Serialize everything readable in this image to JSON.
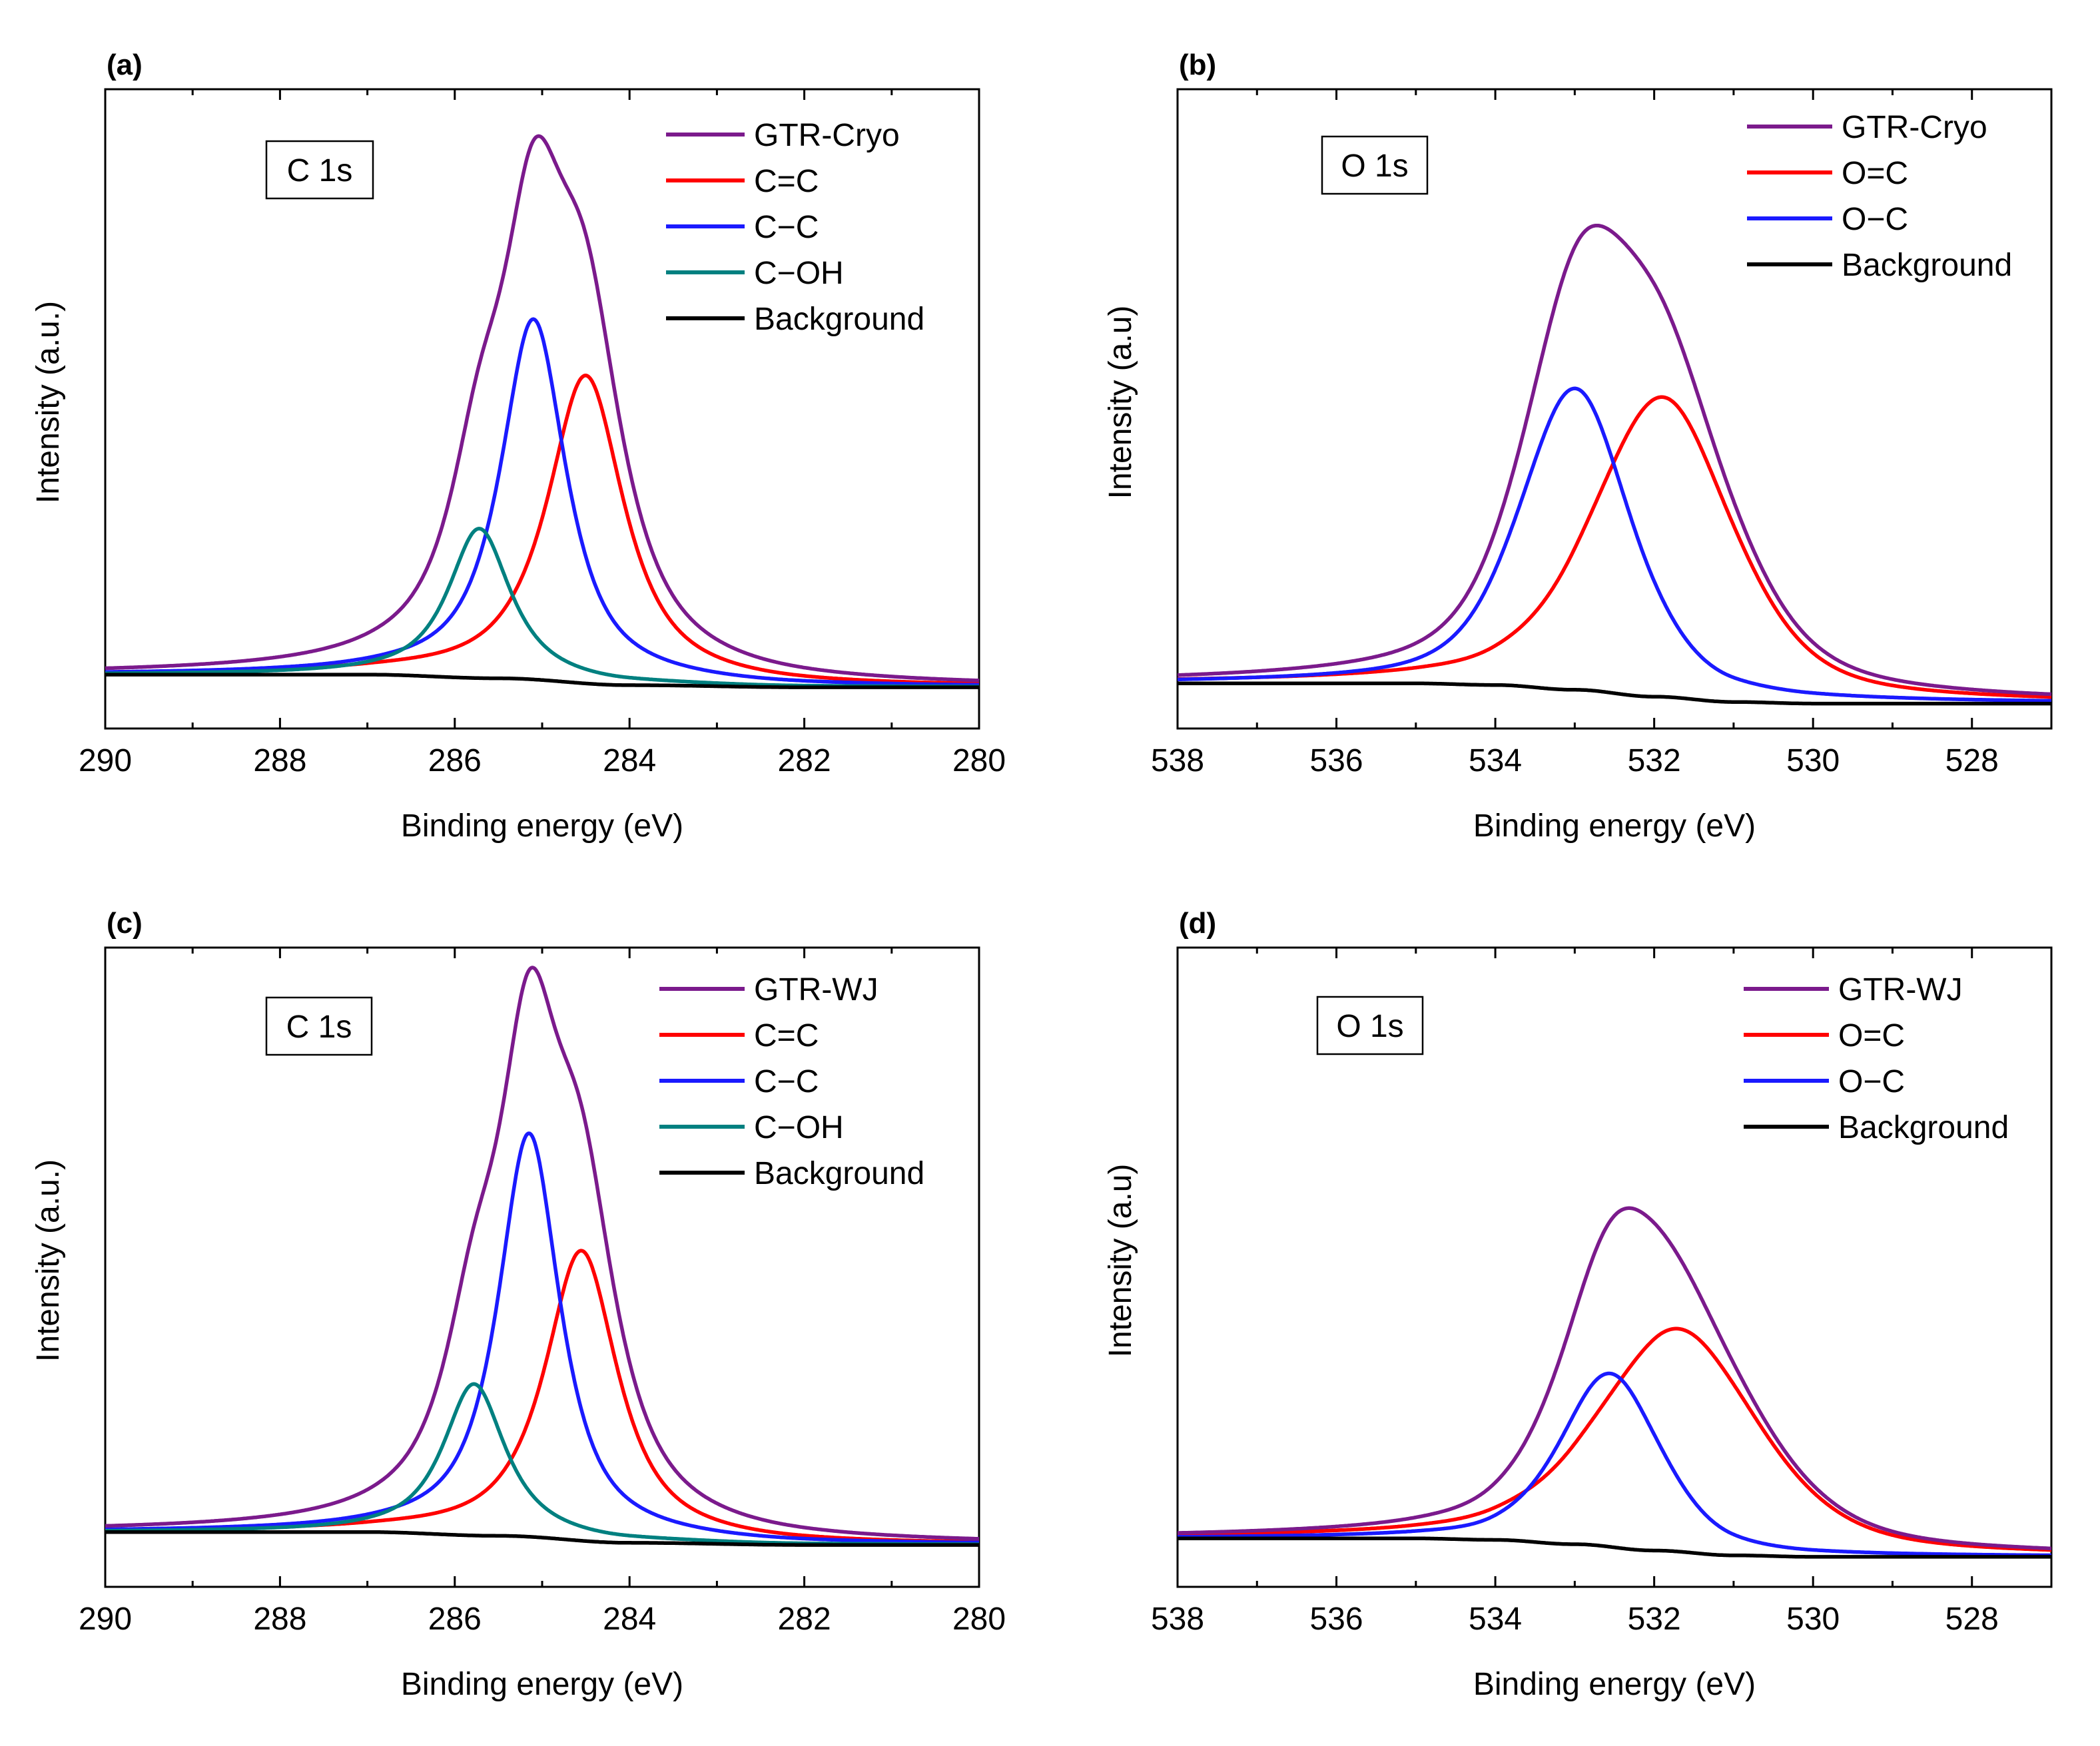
{
  "chart_data": [
    {
      "type": "line",
      "panel_label": "(a)",
      "region_label": "C 1s",
      "xlabel": "Binding energy (eV)",
      "ylabel": "Intensity (a.u.)",
      "xlim": [
        290,
        280
      ],
      "ylim": [
        -0.09,
        1.12
      ],
      "xticks": [
        "290",
        "288",
        "286",
        "284",
        "282",
        "280"
      ],
      "xtick_values": [
        290,
        288,
        286,
        284,
        282,
        280
      ],
      "background": [
        [
          290,
          0.012
        ],
        [
          287,
          0.012
        ],
        [
          285.5,
          0.005
        ],
        [
          284,
          -0.008
        ],
        [
          282,
          -0.012
        ],
        [
          280,
          -0.012
        ]
      ],
      "series": [
        {
          "name": "GTR-Cryo",
          "color": "#7b1a8c",
          "kind": "sum"
        },
        {
          "name": "C=C",
          "color": "#ff0000",
          "kind": "peak",
          "center": 284.5,
          "amp": 0.583,
          "fwhm": 1.05,
          "eta": 0.88
        },
        {
          "name": "C−C",
          "color": "#1a1aff",
          "kind": "peak",
          "center": 285.1,
          "amp": 0.682,
          "fwhm": 0.9,
          "eta": 0.88
        },
        {
          "name": "C−OH",
          "color": "#008080",
          "kind": "peak",
          "center": 285.72,
          "amp": 0.283,
          "fwhm": 0.85,
          "eta": 0.88
        },
        {
          "name": "Background",
          "color": "#000000",
          "kind": "background"
        }
      ]
    },
    {
      "type": "line",
      "panel_label": "(b)",
      "region_label": "O 1s",
      "xlabel": "Binding energy (eV)",
      "ylabel": "Intensity (a.u)",
      "xlim": [
        538,
        527
      ],
      "ylim": [
        -0.085,
        1.12
      ],
      "xticks": [
        "538",
        "536",
        "534",
        "532",
        "530",
        "528"
      ],
      "xtick_values": [
        538,
        536,
        534,
        532,
        530,
        528
      ],
      "background": [
        [
          538,
          0.0
        ],
        [
          535,
          0.0
        ],
        [
          534,
          -0.003
        ],
        [
          533,
          -0.012
        ],
        [
          532,
          -0.025
        ],
        [
          531,
          -0.035
        ],
        [
          530,
          -0.038
        ],
        [
          527,
          -0.038
        ]
      ],
      "series": [
        {
          "name": "GTR-Cryo",
          "color": "#7b1a8c",
          "kind": "sum"
        },
        {
          "name": "O=C",
          "color": "#ff0000",
          "kind": "peak",
          "center": 531.9,
          "amp": 0.565,
          "fwhm": 2.1,
          "eta": 0.5
        },
        {
          "name": "O−C",
          "color": "#1a1aff",
          "kind": "peak",
          "center": 533.0,
          "amp": 0.568,
          "fwhm": 1.65,
          "eta": 0.5
        },
        {
          "name": "Background",
          "color": "#000000",
          "kind": "background"
        }
      ]
    },
    {
      "type": "line",
      "panel_label": "(c)",
      "region_label": "C 1s",
      "xlabel": "Binding energy (eV)",
      "ylabel": "Intensity (a.u.)",
      "xlim": [
        290,
        280
      ],
      "ylim": [
        -0.09,
        1.1
      ],
      "xticks": [
        "290",
        "288",
        "286",
        "284",
        "282",
        "280"
      ],
      "xtick_values": [
        290,
        288,
        286,
        284,
        282,
        280
      ],
      "background": [
        [
          290,
          0.012
        ],
        [
          287,
          0.012
        ],
        [
          285.5,
          0.005
        ],
        [
          284,
          -0.008
        ],
        [
          282,
          -0.012
        ],
        [
          280,
          -0.012
        ]
      ],
      "series": [
        {
          "name": "GTR-WJ",
          "color": "#7b1a8c",
          "kind": "sum"
        },
        {
          "name": "C=C",
          "color": "#ff0000",
          "kind": "peak",
          "center": 284.55,
          "amp": 0.54,
          "fwhm": 1.0,
          "eta": 0.88
        },
        {
          "name": "C−C",
          "color": "#1a1aff",
          "kind": "peak",
          "center": 285.15,
          "amp": 0.751,
          "fwhm": 0.85,
          "eta": 0.88
        },
        {
          "name": "C−OH",
          "color": "#008080",
          "kind": "peak",
          "center": 285.78,
          "amp": 0.282,
          "fwhm": 0.85,
          "eta": 0.88
        },
        {
          "name": "Background",
          "color": "#000000",
          "kind": "background"
        }
      ]
    },
    {
      "type": "line",
      "panel_label": "(d)",
      "region_label": "O 1s",
      "xlabel": "Binding energy (eV)",
      "ylabel": "Intensity (a.u)",
      "xlim": [
        538,
        527
      ],
      "ylim": [
        -0.1,
        1.22
      ],
      "xticks": [
        "538",
        "536",
        "534",
        "532",
        "530",
        "528"
      ],
      "xtick_values": [
        538,
        536,
        534,
        532,
        530,
        528
      ],
      "background": [
        [
          538,
          0.0
        ],
        [
          535,
          0.0
        ],
        [
          534,
          -0.003
        ],
        [
          533,
          -0.012
        ],
        [
          532,
          -0.025
        ],
        [
          531,
          -0.035
        ],
        [
          530,
          -0.038
        ],
        [
          527,
          -0.038
        ]
      ],
      "series": [
        {
          "name": "GTR-WJ",
          "color": "#7b1a8c",
          "kind": "sum"
        },
        {
          "name": "O=C",
          "color": "#ff0000",
          "kind": "peak",
          "center": 531.7,
          "amp": 0.46,
          "fwhm": 2.4,
          "eta": 0.5
        },
        {
          "name": "O−C",
          "color": "#1a1aff",
          "kind": "peak",
          "center": 532.55,
          "amp": 0.358,
          "fwhm": 1.5,
          "eta": 0.5
        },
        {
          "name": "Background",
          "color": "#000000",
          "kind": "background"
        }
      ]
    }
  ]
}
